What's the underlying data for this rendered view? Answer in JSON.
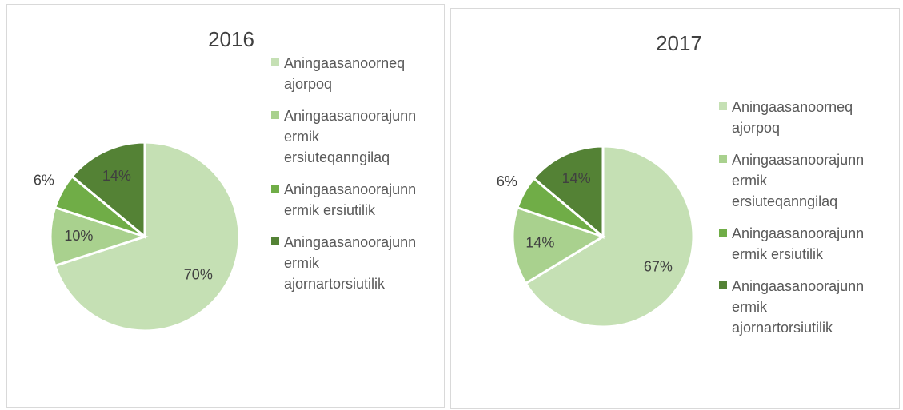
{
  "chart_data": [
    {
      "type": "pie",
      "title": "2016",
      "categories": [
        "Aningaasanoorneq ajorpoq",
        "Aningaasanoorajunnermik ersiuteqanngilaq",
        "Aningaasanoorajunnermik ersiutilik",
        "Aningaasanoorajunnermik ajornartorsiutilik"
      ],
      "values": [
        70,
        10,
        6,
        14
      ],
      "value_labels": [
        "70%",
        "10%",
        "6%",
        "14%"
      ],
      "colors": [
        "#c5e0b4",
        "#a9d18e",
        "#70ad47",
        "#548235"
      ],
      "legend": "right"
    },
    {
      "type": "pie",
      "title": "2017",
      "categories": [
        "Aningaasanoorneq ajorpoq",
        "Aningaasanoorajunnermik ersiuteqanngilaq",
        "Aningaasanoorajunnermik ersiutilik",
        "Aningaasanoorajunnermik ajornartorsiutilik"
      ],
      "values": [
        67,
        14,
        6,
        14
      ],
      "value_labels": [
        "67%",
        "14%",
        "6%",
        "14%"
      ],
      "colors": [
        "#c5e0b4",
        "#a9d18e",
        "#70ad47",
        "#548235"
      ],
      "legend": "right"
    }
  ]
}
